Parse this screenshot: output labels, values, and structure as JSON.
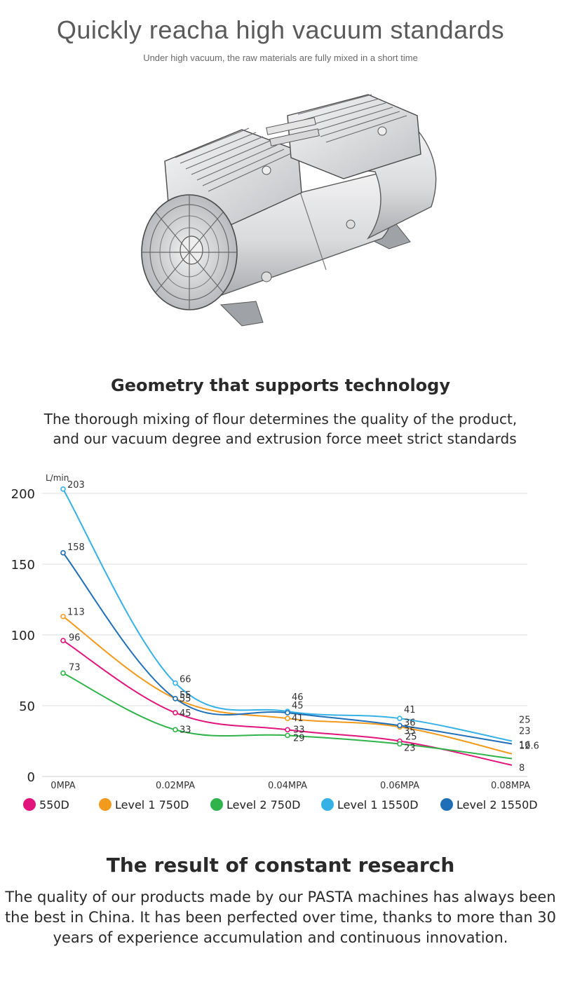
{
  "hero": {
    "title": "Quickly reacha high vacuum standards",
    "subtitle": "Under high vacuum, the raw materials are fully mixed in a short time"
  },
  "section1": {
    "heading": "Geometry that supports technology",
    "text_line1": "The thorough mixing of flour determines the quality of the product,",
    "text_line2": "and our vacuum degree and extrusion force meet strict standards"
  },
  "chart_data": {
    "type": "line",
    "ylabel": "L/min",
    "xlabel": "",
    "categories": [
      "0MPA",
      "0.02MPA",
      "0.04MPA",
      "0.06MPA",
      "0.08MPA"
    ],
    "yticks": [
      0,
      50,
      100,
      150,
      200
    ],
    "ylim": [
      0,
      210
    ],
    "grid": true,
    "legend_position": "bottom",
    "series": [
      {
        "name": "550D",
        "color": "#e0147a",
        "values": [
          96,
          45,
          33,
          25,
          8
        ],
        "labels": [
          "96",
          "45",
          "33",
          "25",
          "8"
        ]
      },
      {
        "name": "Level 1 750D",
        "color": "#f29a1c",
        "values": [
          113,
          55,
          41,
          35,
          16
        ],
        "labels": [
          "113",
          "55",
          "41",
          "35",
          "16"
        ]
      },
      {
        "name": "Level 2 750D",
        "color": "#2fb34a",
        "values": [
          73,
          33,
          29,
          23,
          12.6
        ],
        "labels": [
          "73",
          "33",
          "29",
          "23",
          "12.6"
        ]
      },
      {
        "name": "Level 1 1550D",
        "color": "#36b1e6",
        "values": [
          203,
          66,
          46,
          41,
          25
        ],
        "labels": [
          "203",
          "66",
          "46",
          "41",
          "25"
        ]
      },
      {
        "name": "Level 2 1550D",
        "color": "#1f6fb8",
        "values": [
          158,
          55,
          45,
          36,
          23
        ],
        "labels": [
          "158",
          "55",
          "45",
          "36",
          "23"
        ]
      }
    ]
  },
  "section2": {
    "heading": "The result of constant research",
    "text_line1": "The quality of our products made by our PASTA machines has always been",
    "text_line2": "the best in China. It has been perfected over time, thanks to more than 30",
    "text_line3": "years of experience accumulation and continuous innovation."
  }
}
